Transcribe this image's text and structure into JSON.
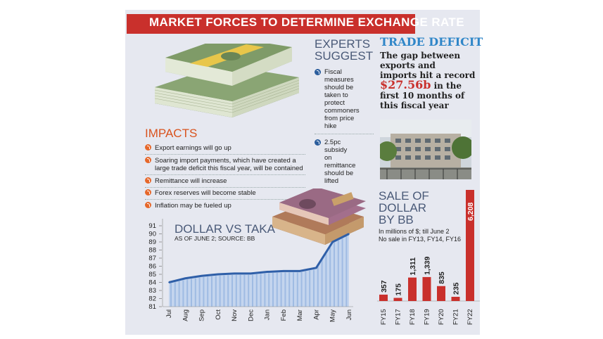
{
  "header": {
    "title": "MARKET FORCES TO DETERMINE EXCHANGE RATE"
  },
  "impacts": {
    "heading": "IMPACTS",
    "items": [
      "Export earnings will go up",
      "Soaring import payments, which have created a",
      "large trade deficit this fiscal year, will be contained",
      "Remittance will increase",
      "Forex reserves will become stable",
      "Inflation may be fueled up"
    ]
  },
  "experts": {
    "heading1": "EXPERTS",
    "heading2": "SUGGEST",
    "item1": [
      "Fiscal",
      "measures",
      "should be",
      "taken to",
      "protect",
      "commoners",
      "from price hike"
    ],
    "item2": [
      "2.5pc subsidy",
      "on remittance",
      "should be",
      "lifted"
    ]
  },
  "trade_deficit": {
    "heading": "TRADE DEFICIT",
    "line1": "The gap between",
    "line2": "exports and",
    "line3": "imports hit a record",
    "amount": "$27.56b",
    "line4_tail": " in the",
    "line5": "first 10 months of",
    "line6": "this fiscal year"
  },
  "sale": {
    "heading1": "SALE OF",
    "heading2": "DOLLAR",
    "heading3": "BY BB",
    "note1": "In millions of $; till June 2",
    "note2": "No sale in FY13, FY14, FY16"
  },
  "line_chart": {
    "title": "DOLLAR VS TAKA",
    "subtitle": "AS OF JUNE 2; SOURCE: BB"
  },
  "colors": {
    "red": "#c9302c",
    "blue": "#2f86c8",
    "orange": "#e6672a",
    "navy": "#4a5a78"
  },
  "chart_data": [
    {
      "type": "area",
      "title": "DOLLAR VS TAKA",
      "subtitle": "AS OF JUNE 2; SOURCE: BB",
      "categories": [
        "Jul",
        "Aug",
        "Sep",
        "Oct",
        "Nov",
        "Dec",
        "Jan",
        "Feb",
        "Mar",
        "Apr",
        "May",
        "Jun"
      ],
      "values": [
        84.0,
        84.5,
        84.8,
        85.0,
        85.1,
        85.1,
        85.3,
        85.4,
        85.4,
        85.8,
        89.0,
        90.0
      ],
      "ylim": [
        81,
        91
      ],
      "yticks": [
        81,
        82,
        83,
        84,
        85,
        86,
        87,
        88,
        89,
        90,
        91
      ]
    },
    {
      "type": "bar",
      "title": "SALE OF DOLLAR BY BB",
      "categories": [
        "FY15",
        "FY17",
        "FY18",
        "FY19",
        "FY20",
        "FY21",
        "FY22"
      ],
      "values": [
        357,
        175,
        1311,
        1339,
        835,
        235,
        6208
      ],
      "labels": [
        "357",
        "175",
        "1,311",
        "1,339",
        "835",
        "235",
        "6,208"
      ],
      "ylim": [
        0,
        6208
      ]
    }
  ]
}
